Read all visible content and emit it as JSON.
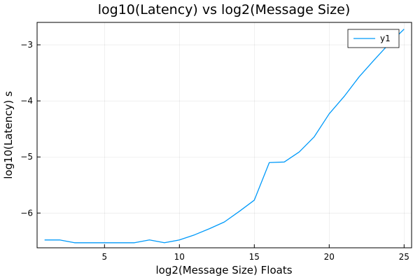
{
  "chart_data": {
    "type": "line",
    "title": "log10(Latency) vs log2(Message Size)",
    "xlabel": "log2(Message Size) Floats",
    "ylabel": "log10(Latency) s",
    "xlim": [
      0.5,
      25.5
    ],
    "ylim": [
      -6.62,
      -2.6
    ],
    "xticks": [
      5,
      10,
      15,
      20,
      25
    ],
    "yticks": [
      -6,
      -5,
      -4,
      -3
    ],
    "xtick_labels": [
      "5",
      "10",
      "15",
      "20",
      "25"
    ],
    "ytick_labels": [
      "−6",
      "−5",
      "−4",
      "−3"
    ],
    "grid": true,
    "legend_position": "top-right",
    "series": [
      {
        "name": "y1",
        "color": "#009AFA",
        "x": [
          1,
          2,
          3,
          4,
          5,
          6,
          7,
          8,
          9,
          10,
          11,
          12,
          13,
          14,
          15,
          16,
          17,
          18,
          19,
          20,
          21,
          22,
          23,
          24,
          25
        ],
        "y": [
          -6.48,
          -6.48,
          -6.53,
          -6.53,
          -6.53,
          -6.53,
          -6.53,
          -6.48,
          -6.53,
          -6.48,
          -6.39,
          -6.28,
          -6.16,
          -5.97,
          -5.77,
          -5.1,
          -5.09,
          -4.91,
          -4.64,
          -4.23,
          -3.92,
          -3.57,
          -3.27,
          -2.98,
          -2.72
        ]
      }
    ]
  }
}
